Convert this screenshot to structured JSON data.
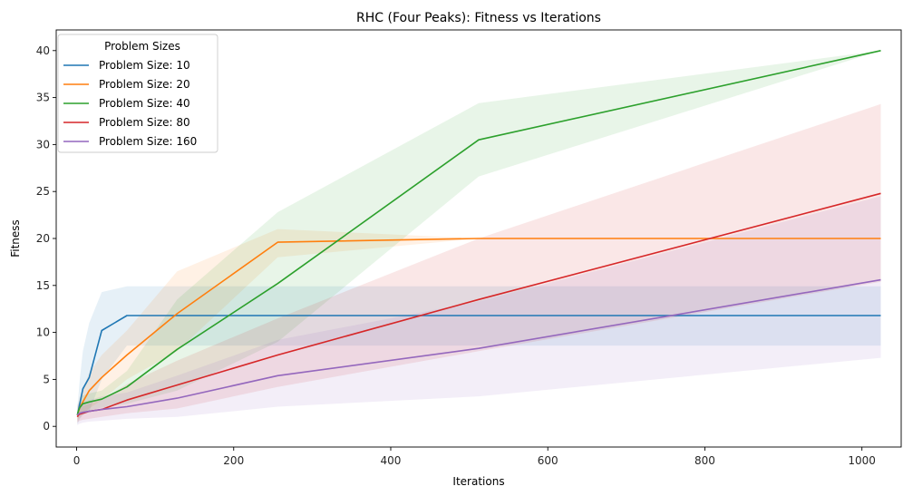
{
  "chart_data": {
    "type": "line",
    "title": "RHC (Four Peaks): Fitness vs Iterations",
    "xlabel": "Iterations",
    "ylabel": "Fitness",
    "xlim": [
      -26,
      1050
    ],
    "ylim": [
      -2.2,
      42.2
    ],
    "xticks": [
      0,
      200,
      400,
      600,
      800,
      1000
    ],
    "yticks": [
      0,
      5,
      10,
      15,
      20,
      25,
      30,
      35,
      40
    ],
    "grid": false,
    "legend": {
      "title": "Problem Sizes",
      "placement": "top-left"
    },
    "x": [
      1,
      2,
      4,
      8,
      16,
      32,
      64,
      128,
      256,
      512,
      1024
    ],
    "series": [
      {
        "name": "Problem Size: 10",
        "color": "#1f77b4",
        "values": [
          1.2,
          1.6,
          2.4,
          4.0,
          5.2,
          10.2,
          11.8,
          11.8,
          11.8,
          11.8,
          11.8
        ],
        "lower": [
          0.2,
          0.4,
          0.8,
          1.2,
          1.6,
          5.0,
          8.6,
          8.6,
          8.6,
          8.6,
          8.6
        ],
        "upper": [
          2.2,
          3.0,
          5.0,
          8.0,
          11.0,
          14.3,
          14.9,
          14.9,
          14.9,
          14.9,
          14.9
        ]
      },
      {
        "name": "Problem Size: 20",
        "color": "#ff7f0e",
        "values": [
          1.2,
          1.5,
          2.0,
          2.6,
          3.8,
          5.2,
          7.6,
          12.0,
          19.6,
          20.0,
          20.0
        ],
        "lower": [
          0.4,
          0.6,
          0.9,
          1.3,
          1.9,
          2.8,
          5.0,
          8.0,
          18.0,
          20.0,
          20.0
        ],
        "upper": [
          2.0,
          2.4,
          3.1,
          3.9,
          5.7,
          7.6,
          10.2,
          16.5,
          21.0,
          20.0,
          20.0
        ]
      },
      {
        "name": "Problem Size: 40",
        "color": "#2ca02c",
        "values": [
          1.2,
          1.6,
          2.0,
          2.4,
          2.6,
          2.9,
          4.2,
          8.2,
          15.2,
          30.5,
          40.0
        ],
        "lower": [
          0.6,
          0.9,
          1.2,
          1.5,
          1.7,
          2.0,
          2.4,
          3.8,
          9.0,
          26.6,
          40.0
        ],
        "upper": [
          1.8,
          2.3,
          2.8,
          3.3,
          3.5,
          3.8,
          5.9,
          13.5,
          22.8,
          34.4,
          40.0
        ]
      },
      {
        "name": "Problem Size: 80",
        "color": "#d62728",
        "values": [
          1.0,
          1.2,
          1.3,
          1.4,
          1.6,
          1.8,
          2.8,
          4.4,
          7.6,
          13.5,
          24.8
        ],
        "lower": [
          0.4,
          0.5,
          0.6,
          0.7,
          0.8,
          1.0,
          1.4,
          1.9,
          4.2,
          8.0,
          15.4
        ],
        "upper": [
          1.6,
          1.9,
          2.0,
          2.2,
          2.4,
          2.8,
          4.5,
          7.0,
          11.5,
          20.0,
          34.3
        ]
      },
      {
        "name": "Problem Size: 160",
        "color": "#9467bd",
        "values": [
          1.2,
          1.3,
          1.4,
          1.5,
          1.6,
          1.8,
          2.1,
          3.0,
          5.4,
          8.3,
          15.6
        ],
        "lower": [
          0.1,
          0.2,
          0.3,
          0.4,
          0.5,
          0.6,
          0.8,
          1.0,
          2.1,
          3.2,
          7.3
        ],
        "upper": [
          2.3,
          2.4,
          2.5,
          2.6,
          2.8,
          3.2,
          3.6,
          5.4,
          9.2,
          13.3,
          24.5
        ]
      }
    ]
  }
}
